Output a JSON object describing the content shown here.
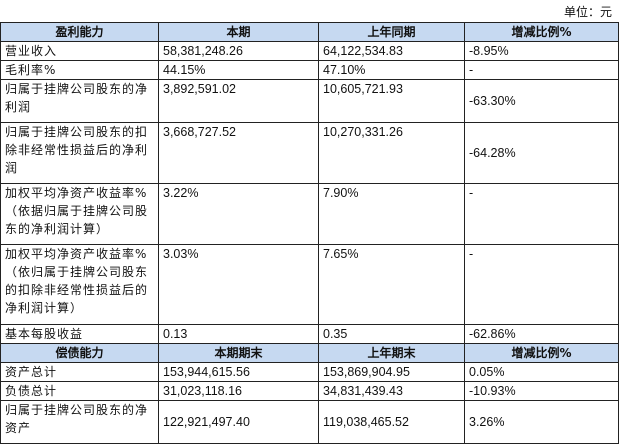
{
  "unit_label": "单位：元",
  "profit_section": {
    "headers": [
      "盈利能力",
      "本期",
      "上年同期",
      "增减比例%"
    ],
    "rows": [
      {
        "label": "营业收入",
        "current": "58,381,248.26",
        "prior": "64,122,534.83",
        "change": "-8.95%"
      },
      {
        "label": "毛利率%",
        "current": "44.15%",
        "prior": "47.10%",
        "change": "-"
      },
      {
        "label": "归属于挂牌公司股东的净利润",
        "current": "3,892,591.02",
        "prior": "10,605,721.93",
        "change": "-63.30%"
      },
      {
        "label": "归属于挂牌公司股东的扣除非经常性损益后的净利润",
        "current": "3,668,727.52",
        "prior": "10,270,331.26",
        "change": "-64.28%"
      },
      {
        "label": "加权平均净资产收益率%（依据归属于挂牌公司股东的净利润计算）",
        "current": "3.22%",
        "prior": "7.90%",
        "change": "-"
      },
      {
        "label": "加权平均净资产收益率%（依归属于挂牌公司股东的扣除非经常性损益后的净利润计算）",
        "current": "3.03%",
        "prior": "7.65%",
        "change": "-"
      },
      {
        "label": "基本每股收益",
        "current": "0.13",
        "prior": "0.35",
        "change": "-62.86%"
      }
    ]
  },
  "solvency_section": {
    "headers": [
      "偿债能力",
      "本期期末",
      "上年期末",
      "增减比例%"
    ],
    "rows": [
      {
        "label": "资产总计",
        "current": "153,944,615.56",
        "prior": "153,869,904.95",
        "change": "0.05%"
      },
      {
        "label": "负债总计",
        "current": "31,023,118.16",
        "prior": "34,831,439.43",
        "change": "-10.93%"
      },
      {
        "label": "归属于挂牌公司股东的净资产",
        "current": "122,921,497.40",
        "prior": "119,038,465.52",
        "change": "3.26%"
      }
    ]
  }
}
